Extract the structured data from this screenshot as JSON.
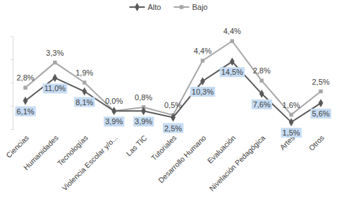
{
  "chart_data": {
    "type": "line",
    "categories": [
      "Ciencias",
      "Humanidades",
      "Tecnologías",
      "Violencia Escolar y/o...",
      "Las TIC",
      "Tutoriales",
      "Desarrollo Humano",
      "Evaluación",
      "Nivelación Pedagógica",
      "Artes",
      "Otros"
    ],
    "series": [
      {
        "name": "Alto",
        "color": "#595959",
        "marker": "diamond",
        "values": [
          6.1,
          11.0,
          8.1,
          3.9,
          3.9,
          2.5,
          10.3,
          14.5,
          7.6,
          1.5,
          5.6
        ],
        "value_labels": [
          "6,1%",
          "11,0%",
          "8,1%",
          "3,9%",
          "3,9%",
          "2,5%",
          "10,3%",
          "14,5%",
          "7,6%",
          "1,5%",
          "5,6%"
        ]
      },
      {
        "name": "Bajo",
        "color": "#a6a6a6",
        "marker": "square",
        "values": [
          2.8,
          3.3,
          1.9,
          0.0,
          0.8,
          0.5,
          4.4,
          4.4,
          2.8,
          1.6,
          2.5
        ],
        "value_labels": [
          "2,8%",
          "3,3%",
          "1,9%",
          "0,0%",
          "0,8%",
          "0,5%",
          "4,4%",
          "4,4%",
          "2,8%",
          "1,6%",
          "2,5%"
        ]
      }
    ],
    "stacked": true,
    "data_labels": true,
    "ylim": [
      0,
      20
    ],
    "yticks": [
      0,
      5,
      10,
      15,
      20
    ],
    "tick_labels": "x",
    "legend": "top",
    "grid": false
  }
}
